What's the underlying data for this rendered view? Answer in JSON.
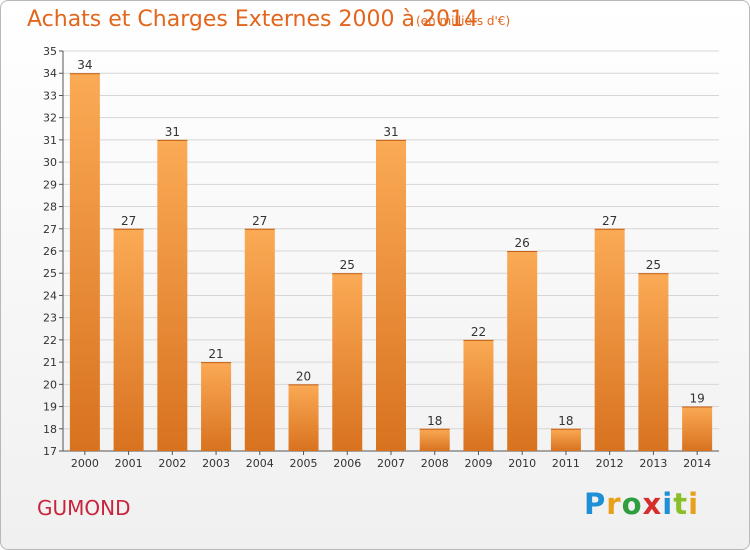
{
  "header": {
    "title": "Achats et Charges Externes 2000 à 2014",
    "subtitle": "(en milliers d'€)"
  },
  "footer": {
    "commune": "GUMOND",
    "brand": "Proxiti",
    "brand_colors": [
      "#1f8fd6",
      "#e8a01a",
      "#2e9e3e",
      "#d62d2d",
      "#1f8fd6",
      "#8bbf2a",
      "#e8a01a"
    ]
  },
  "colors": {
    "title": "#e2661c",
    "commune": "#c8243c",
    "bar_top": "#fbaa55",
    "bar_bottom": "#d8721f",
    "grid": "#d6d6d6"
  },
  "chart_data": {
    "type": "bar",
    "title": "Achats et Charges Externes 2000 à 2014",
    "subtitle": "(en milliers d'€)",
    "categories": [
      "2000",
      "2001",
      "2002",
      "2003",
      "2004",
      "2005",
      "2006",
      "2007",
      "2008",
      "2009",
      "2010",
      "2011",
      "2012",
      "2013",
      "2014"
    ],
    "values": [
      34,
      27,
      31,
      21,
      27,
      20,
      25,
      31,
      18,
      22,
      26,
      18,
      27,
      25,
      19
    ],
    "ylim": [
      17,
      35
    ],
    "yticks": [
      17,
      18,
      19,
      20,
      21,
      22,
      23,
      24,
      25,
      26,
      27,
      28,
      29,
      30,
      31,
      32,
      33,
      34,
      35
    ],
    "grid": true,
    "legend": "none"
  }
}
